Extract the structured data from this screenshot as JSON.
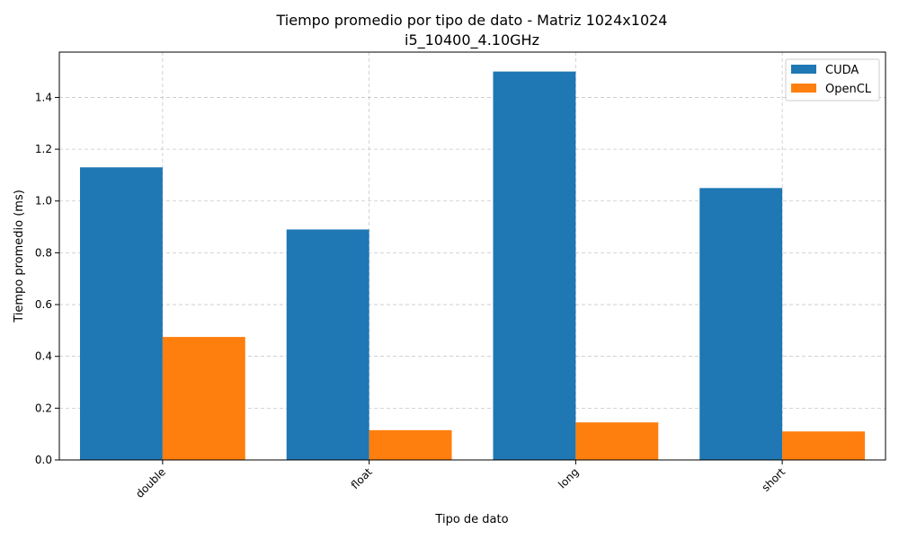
{
  "chart_data": {
    "type": "bar",
    "title": "Tiempo promedio por tipo de dato - Matriz 1024x1024",
    "subtitle": "i5_10400_4.10GHz",
    "xlabel": "Tipo de dato",
    "ylabel": "Tiempo promedio (ms)",
    "categories": [
      "double",
      "float",
      "long",
      "short"
    ],
    "series": [
      {
        "name": "CUDA",
        "color": "#1f77b4",
        "values": [
          1.13,
          0.89,
          1.5,
          1.05
        ]
      },
      {
        "name": "OpenCL",
        "color": "#ff7f0e",
        "values": [
          0.475,
          0.115,
          0.145,
          0.11
        ]
      }
    ],
    "ylim": [
      0,
      1.575
    ],
    "yticks": [
      "0.0",
      "0.2",
      "0.4",
      "0.6",
      "0.8",
      "1.0",
      "1.2",
      "1.4"
    ],
    "grid": true,
    "legend_position": "top-right"
  }
}
